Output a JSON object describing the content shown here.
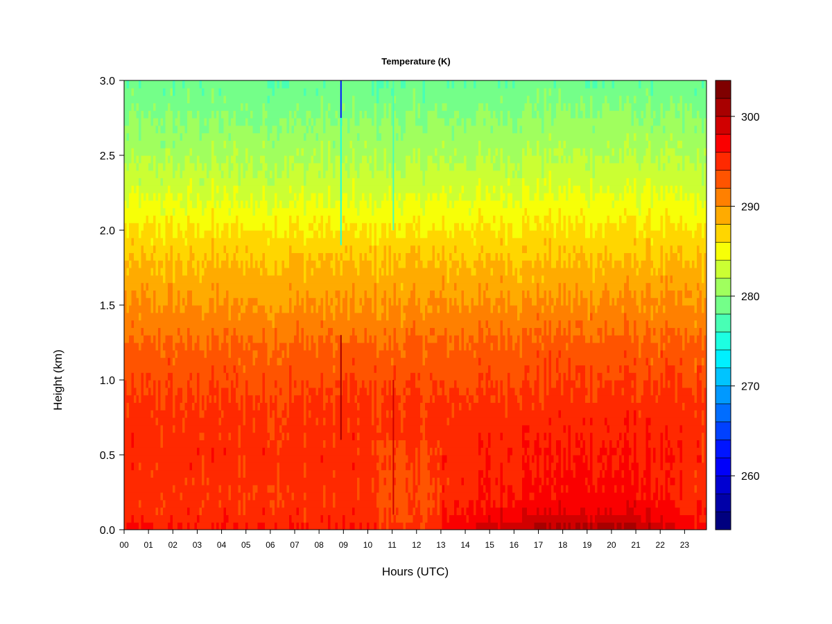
{
  "chart_data": {
    "type": "heatmap",
    "title": "Temperature (K)",
    "xlabel": "Hours (UTC)",
    "ylabel": "Height (km)",
    "x_ticks": [
      "00",
      "01",
      "02",
      "03",
      "04",
      "05",
      "06",
      "07",
      "08",
      "09",
      "10",
      "11",
      "12",
      "13",
      "14",
      "15",
      "16",
      "17",
      "18",
      "19",
      "20",
      "21",
      "22",
      "23"
    ],
    "y_ticks": [
      "0.0",
      "0.5",
      "1.0",
      "1.5",
      "2.0",
      "2.5",
      "3.0"
    ],
    "xlim": [
      0,
      23.9
    ],
    "ylim": [
      0,
      3.0
    ],
    "colorbar": {
      "range": [
        254,
        304
      ],
      "step": 2,
      "tick_values": [
        260,
        270,
        280,
        290,
        300
      ],
      "tick_labels": [
        "260",
        "270",
        "280",
        "290",
        "300"
      ],
      "colors": [
        "#00007f",
        "#0000a8",
        "#0000d1",
        "#0000fa",
        "#0015ff",
        "#0041ff",
        "#006dff",
        "#0099ff",
        "#00c4ff",
        "#00f0ff",
        "#1dffe1",
        "#48ffb5",
        "#74ff89",
        "#a0ff5e",
        "#cbff33",
        "#f7ff07",
        "#ffd600",
        "#ffab00",
        "#ff8000",
        "#ff5400",
        "#ff2900",
        "#fa0000",
        "#d10000",
        "#a80000",
        "#7f0000"
      ]
    },
    "grid": false,
    "legend": "colorbar-right",
    "profile": {
      "heights_km": [
        0.0,
        0.1,
        0.25,
        0.5,
        0.8,
        1.2,
        1.5,
        1.8,
        2.0,
        2.25,
        2.5,
        2.8,
        3.0
      ],
      "temps_K_night": [
        296.0,
        295.0,
        294.5,
        295.0,
        294.5,
        292.5,
        290.0,
        288.0,
        286.0,
        283.5,
        281.5,
        279.5,
        278.5
      ],
      "temps_K_afternoon": [
        301.0,
        298.0,
        296.5,
        296.0,
        295.0,
        293.0,
        290.5,
        288.0,
        286.5,
        284.0,
        282.0,
        280.0,
        278.5
      ]
    },
    "annotations": [
      {
        "hour": 8.9,
        "note": "cold vertical streak (blue)"
      },
      {
        "hour": 11.05,
        "note": "vertical streak"
      }
    ]
  }
}
